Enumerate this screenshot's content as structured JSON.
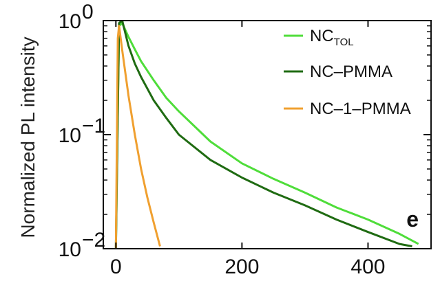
{
  "chart_data": {
    "type": "line",
    "ylabel": "Normalized PL intensity",
    "xlabel": "",
    "panel_label": "e",
    "xlim": [
      -20,
      500
    ],
    "ylim": [
      0.01,
      1
    ],
    "yscale": "log",
    "x_ticks": [
      0,
      200,
      400
    ],
    "x_tick_labels": [
      "0",
      "200",
      "400"
    ],
    "y_ticks": [
      {
        "value": 1,
        "base": "10",
        "exp": "0"
      },
      {
        "value": 0.1,
        "base": "10",
        "exp": "−1"
      },
      {
        "value": 0.01,
        "base": "10",
        "exp": "−2"
      }
    ],
    "legend_position": "top-right",
    "series": [
      {
        "name": "NC",
        "name_sub": "TOL",
        "color": "#4fdd3a",
        "x": [
          0,
          5,
          10,
          20,
          30,
          40,
          60,
          80,
          100,
          150,
          200,
          250,
          300,
          350,
          400,
          450,
          480
        ],
        "y": [
          0.01,
          0.9,
          0.95,
          0.72,
          0.56,
          0.44,
          0.3,
          0.21,
          0.16,
          0.087,
          0.056,
          0.041,
          0.031,
          0.023,
          0.018,
          0.0135,
          0.011
        ]
      },
      {
        "name": "NC–PMMA",
        "color": "#1f6b12",
        "x": [
          0,
          5,
          10,
          20,
          30,
          40,
          60,
          80,
          100,
          150,
          200,
          250,
          300,
          350,
          400,
          450,
          470
        ],
        "y": [
          0.01,
          0.95,
          1.0,
          0.6,
          0.42,
          0.32,
          0.2,
          0.14,
          0.1,
          0.06,
          0.042,
          0.031,
          0.024,
          0.018,
          0.014,
          0.011,
          0.0105
        ]
      },
      {
        "name": "NC–1–PMMA",
        "color": "#f0a030",
        "x": [
          0,
          3,
          5,
          10,
          20,
          30,
          40,
          50,
          60,
          70
        ],
        "y": [
          0.01,
          0.7,
          0.9,
          0.55,
          0.22,
          0.1,
          0.05,
          0.028,
          0.017,
          0.0105
        ]
      }
    ]
  }
}
